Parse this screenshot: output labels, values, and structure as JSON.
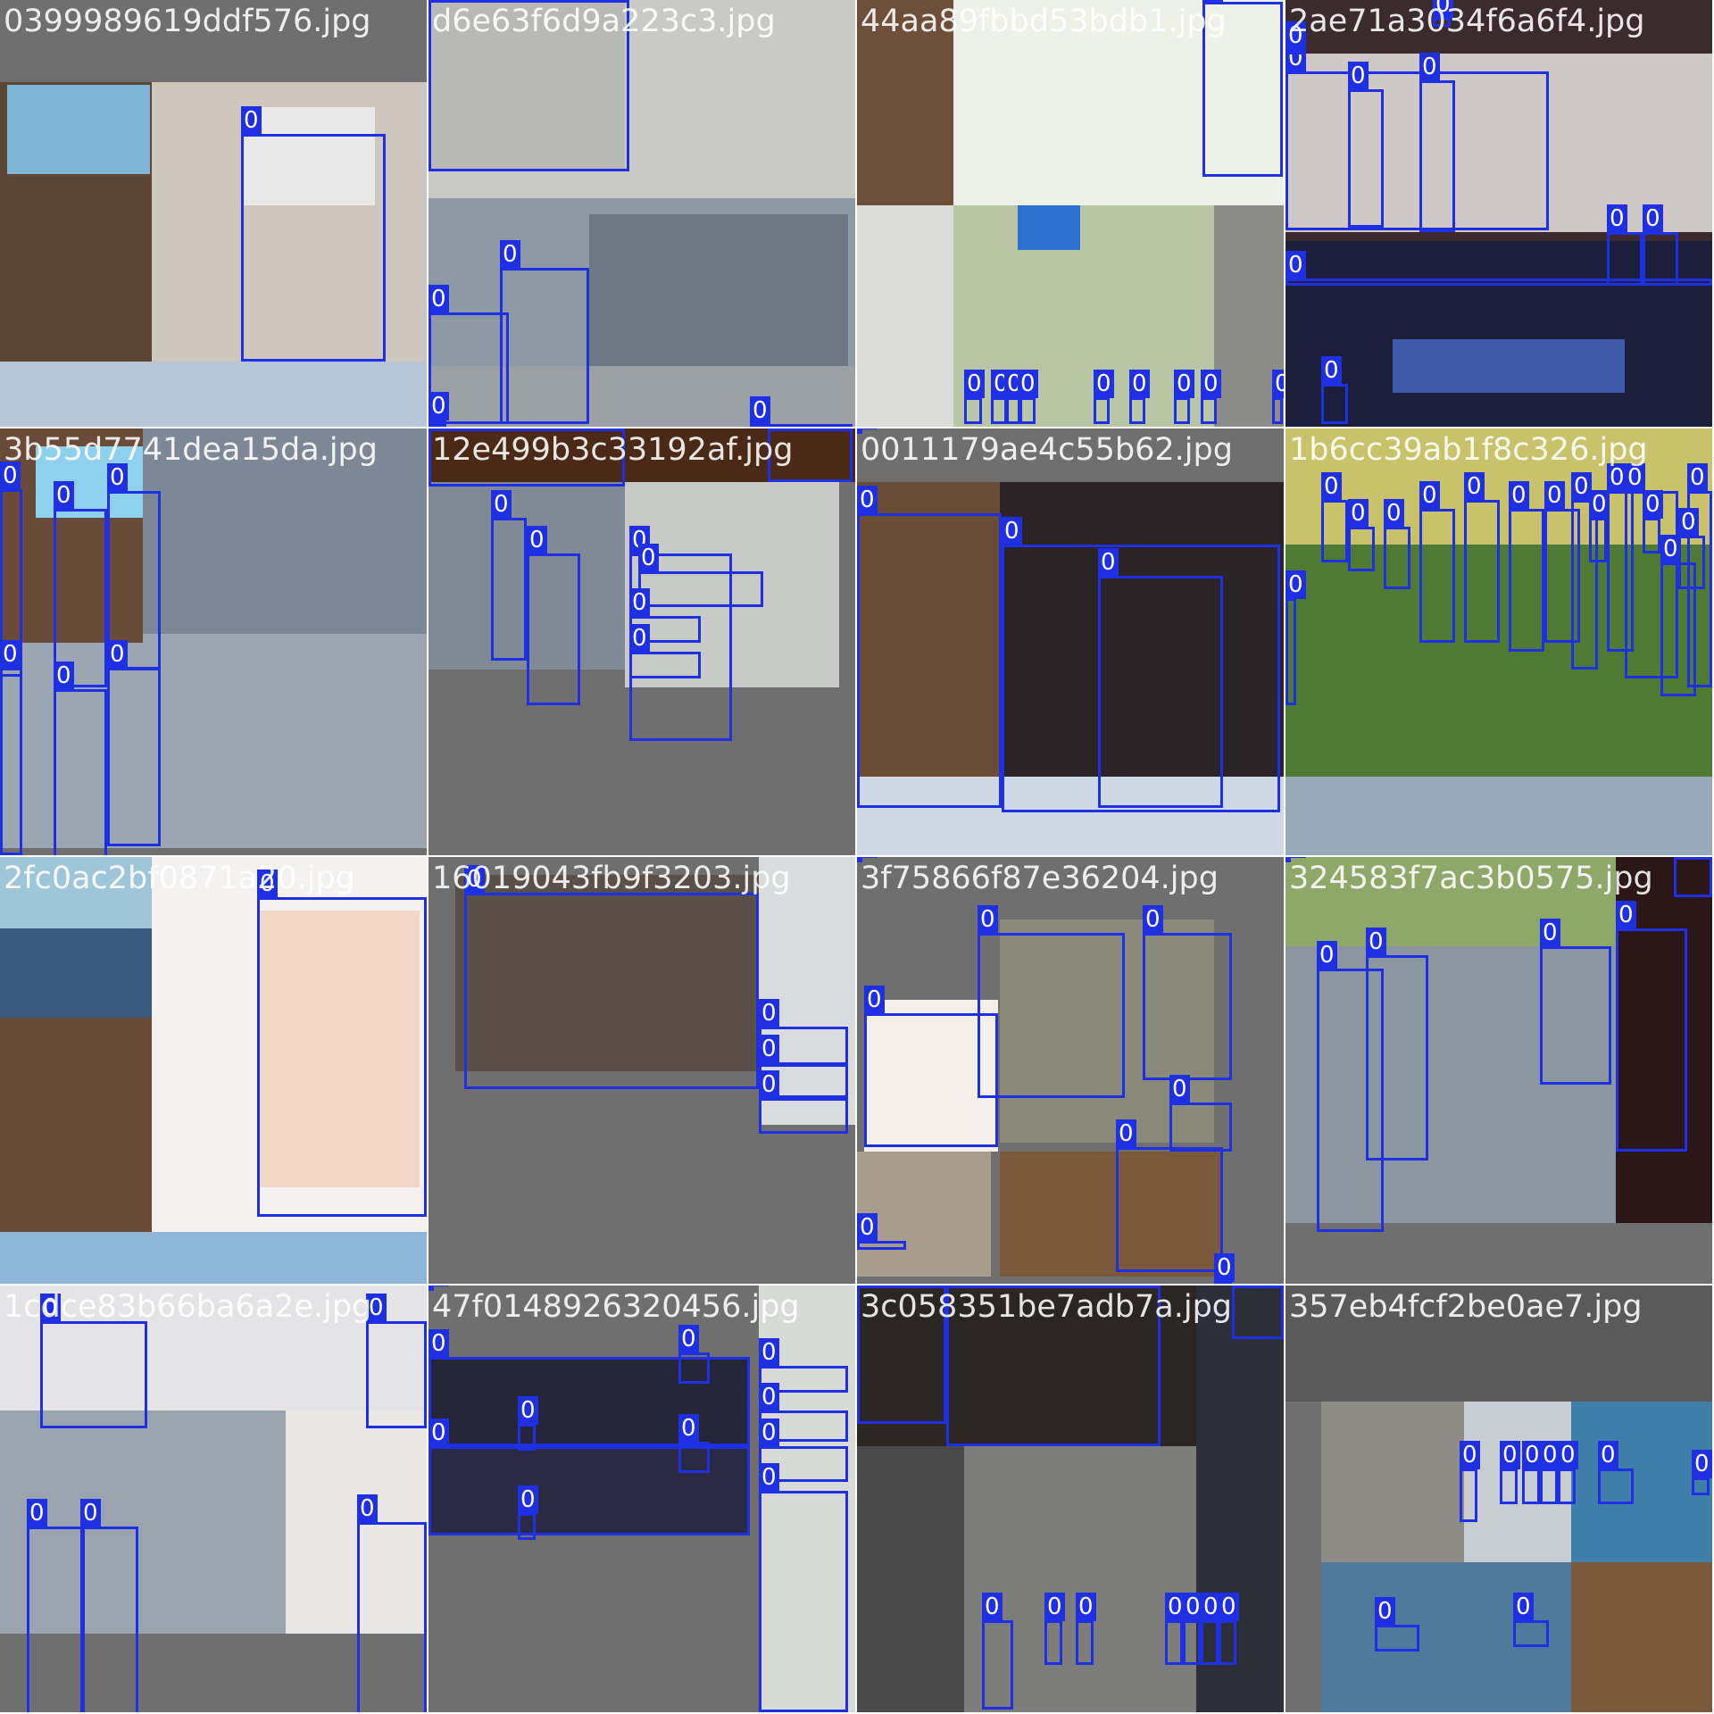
{
  "grid": {
    "rows": 4,
    "cols": 4
  },
  "colors": {
    "box": "#1f2fe3",
    "label_fg": "#ffffff",
    "pad": "#6f6f6f",
    "caption": "#ffffff"
  },
  "tiles": [
    {
      "name": "0399989619ddf576.jpg",
      "labels": [
        "0"
      ]
    },
    {
      "name": "d6e63f6d9a223c3.jpg",
      "labels": [
        "0",
        "0",
        "0",
        "0",
        "0"
      ]
    },
    {
      "name": "44aa89fbbd53bdb1.jpg",
      "labels": [
        "0",
        "0",
        "0",
        "0",
        "0",
        "0",
        "0",
        "0",
        "0",
        "0"
      ]
    },
    {
      "name": "2ae71a3034f6a6f4.jpg",
      "labels": [
        "0",
        "0",
        "0",
        "0",
        "0",
        "0",
        "0",
        "0",
        "0"
      ]
    },
    {
      "name": "3b55d7741dea15da.jpg",
      "labels": [
        "0",
        "0",
        "0",
        "0",
        "0",
        "0"
      ]
    },
    {
      "name": "12e499b3c33192af.jpg",
      "labels": [
        "0",
        "0",
        "0",
        "0",
        "0",
        "0",
        "0",
        "0"
      ]
    },
    {
      "name": "0011179ae4c55b62.jpg",
      "labels": [
        "0",
        "0",
        "0",
        "0"
      ]
    },
    {
      "name": "1b6cc39ab1f8c326.jpg",
      "labels": [
        "0",
        "0",
        "0",
        "0",
        "0",
        "0",
        "0",
        "0",
        "0",
        "0",
        "0",
        "0",
        "0",
        "0",
        "0",
        "0"
      ]
    },
    {
      "name": "2fc0ac2bf0871a20.jpg",
      "labels": [
        "0"
      ]
    },
    {
      "name": "16019043fb9f3203.jpg",
      "labels": [
        "0",
        "0",
        "0",
        "0"
      ]
    },
    {
      "name": "3f75866f87e36204.jpg",
      "labels": [
        "0",
        "0",
        "0",
        "0",
        "0",
        "0",
        "0",
        "0"
      ]
    },
    {
      "name": "324583f7ac3b0575.jpg",
      "labels": [
        "0",
        "0",
        "0",
        "0",
        "0",
        "0"
      ]
    },
    {
      "name": "1cdce83b66ba6a2e.jpg",
      "labels": [
        "0",
        "0",
        "0",
        "0",
        "0"
      ]
    },
    {
      "name": "47f0148926320456.jpg",
      "labels": [
        "0",
        "0",
        "0",
        "0",
        "0",
        "0",
        "0",
        "0",
        "0",
        "0",
        "0"
      ]
    },
    {
      "name": "3c058351be7adb7a.jpg",
      "labels": [
        "0",
        "0",
        "0",
        "0",
        "0",
        "0",
        "0",
        "0",
        "0",
        "0"
      ]
    },
    {
      "name": "357eb4fcf2be0ae7.jpg",
      "labels": [
        "0",
        "0",
        "0",
        "0",
        "0",
        "0",
        "0",
        "0",
        "0"
      ]
    }
  ]
}
